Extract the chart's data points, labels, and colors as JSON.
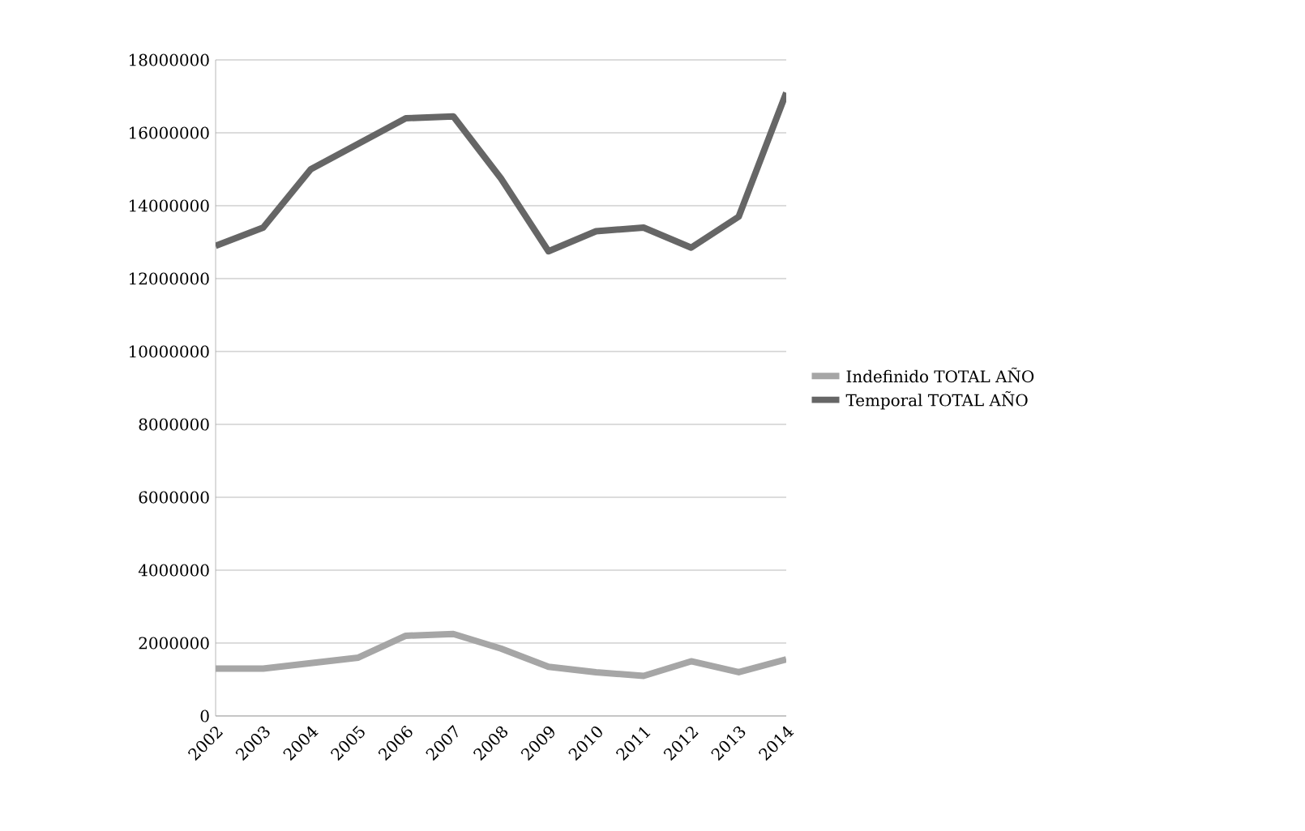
{
  "chart_data": {
    "type": "line",
    "categories": [
      "2002",
      "2003",
      "2004",
      "2005",
      "2006",
      "2007",
      "2008",
      "2009",
      "2010",
      "2011",
      "2012",
      "2013",
      "2014"
    ],
    "series": [
      {
        "name": "Indefinido TOTAL AÑO",
        "color": "#a6a6a6",
        "values": [
          1300000,
          1300000,
          1450000,
          1600000,
          2200000,
          2250000,
          1850000,
          1350000,
          1200000,
          1100000,
          1500000,
          1200000,
          1550000
        ]
      },
      {
        "name": "Temporal TOTAL AÑO",
        "color": "#666666",
        "values": [
          12900000,
          13400000,
          15000000,
          15700000,
          16400000,
          16450000,
          14750000,
          12750000,
          13300000,
          13400000,
          12850000,
          13700000,
          17100000
        ]
      }
    ],
    "ylim": [
      0,
      18000000
    ],
    "yticks": [
      0,
      2000000,
      4000000,
      6000000,
      8000000,
      10000000,
      12000000,
      14000000,
      16000000,
      18000000
    ],
    "grid": "y",
    "legend": "right",
    "marker": "none",
    "line_style": "solid"
  }
}
